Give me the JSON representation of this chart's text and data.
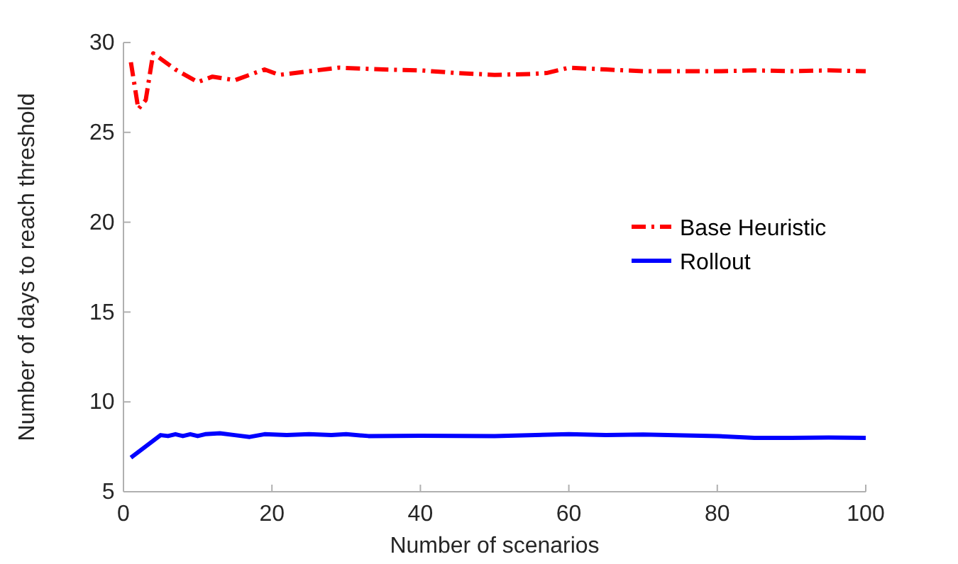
{
  "chart_data": {
    "type": "line",
    "xlabel": "Number of scenarios",
    "ylabel": "Number of days to reach threshold",
    "xlim": [
      0,
      100
    ],
    "ylim": [
      5,
      30
    ],
    "xticks": [
      0,
      20,
      40,
      60,
      80,
      100
    ],
    "yticks": [
      5,
      10,
      15,
      20,
      25,
      30
    ],
    "grid": false,
    "legend": "right",
    "marker": "none",
    "series": [
      {
        "name": "Base Heuristic",
        "color": "#ff0000",
        "line_style": "dashed",
        "x": [
          1,
          2,
          3,
          4,
          5,
          7,
          10,
          12,
          15,
          19,
          21,
          25,
          29,
          35,
          40,
          45,
          50,
          55,
          57,
          60,
          65,
          70,
          75,
          80,
          85,
          90,
          95,
          100
        ],
        "values": [
          28.9,
          26.3,
          26.8,
          29.4,
          29.1,
          28.5,
          27.8,
          28.1,
          27.9,
          28.5,
          28.2,
          28.4,
          28.6,
          28.5,
          28.45,
          28.3,
          28.2,
          28.25,
          28.3,
          28.6,
          28.5,
          28.4,
          28.4,
          28.4,
          28.45,
          28.4,
          28.45,
          28.4
        ]
      },
      {
        "name": "Rollout",
        "color": "#0000ff",
        "line_style": "solid",
        "x": [
          1,
          5,
          6,
          7,
          8,
          9,
          10,
          11,
          13,
          15,
          17,
          19,
          22,
          25,
          28,
          30,
          33,
          40,
          50,
          60,
          65,
          70,
          80,
          85,
          90,
          95,
          100
        ],
        "values": [
          6.9,
          8.15,
          8.1,
          8.2,
          8.1,
          8.2,
          8.1,
          8.2,
          8.25,
          8.15,
          8.05,
          8.2,
          8.15,
          8.2,
          8.15,
          8.2,
          8.1,
          8.12,
          8.1,
          8.2,
          8.15,
          8.18,
          8.1,
          8.0,
          8.0,
          8.02,
          8.0
        ]
      }
    ]
  }
}
